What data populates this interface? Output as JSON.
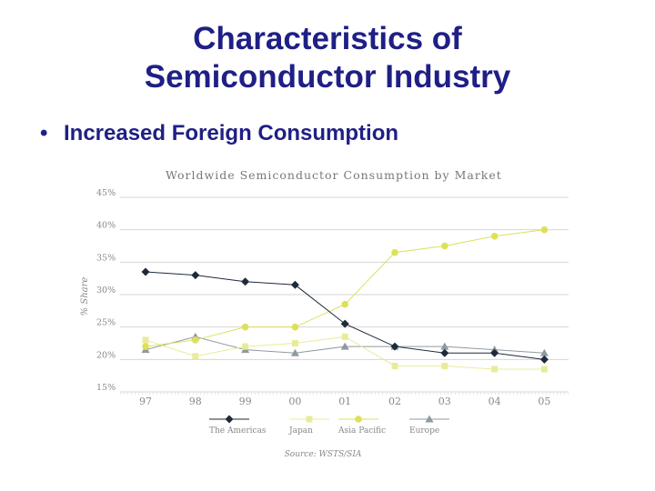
{
  "slide": {
    "title_line1": "Characteristics of",
    "title_line2": "Semiconductor Industry",
    "bullet_symbol": "•",
    "bullet_text": "Increased Foreign Consumption"
  },
  "chart_data": {
    "type": "line",
    "title": "Worldwide Semiconductor Consumption by Market",
    "ylabel": "% Share",
    "xlabel": "",
    "source": "Source: WSTS/SIA",
    "categories": [
      "97",
      "98",
      "99",
      "00",
      "01",
      "02",
      "03",
      "04",
      "05"
    ],
    "y_ticks": [
      "15%",
      "20%",
      "25%",
      "30%",
      "35%",
      "40%",
      "45%"
    ],
    "ylim": [
      15,
      45
    ],
    "grid": true,
    "legend_position": "bottom",
    "series": [
      {
        "name": "The Americas",
        "color": "#1d2a3a",
        "marker": "diamond",
        "values": [
          33.5,
          33.0,
          32.0,
          31.5,
          25.5,
          22.0,
          21.0,
          21.0,
          20.0
        ]
      },
      {
        "name": "Japan",
        "color": "#e8ec9a",
        "marker": "square",
        "values": [
          23.0,
          20.5,
          22.0,
          22.5,
          23.5,
          19.0,
          19.0,
          18.5,
          18.5
        ]
      },
      {
        "name": "Asia Pacific",
        "color": "#dde05a",
        "marker": "circle",
        "values": [
          22.0,
          23.0,
          25.0,
          25.0,
          28.5,
          36.5,
          37.5,
          39.0,
          40.0
        ]
      },
      {
        "name": "Europe",
        "color": "#8f9aa0",
        "marker": "triangle",
        "values": [
          21.5,
          23.5,
          21.5,
          21.0,
          22.0,
          22.0,
          22.0,
          21.5,
          21.0
        ]
      }
    ]
  }
}
